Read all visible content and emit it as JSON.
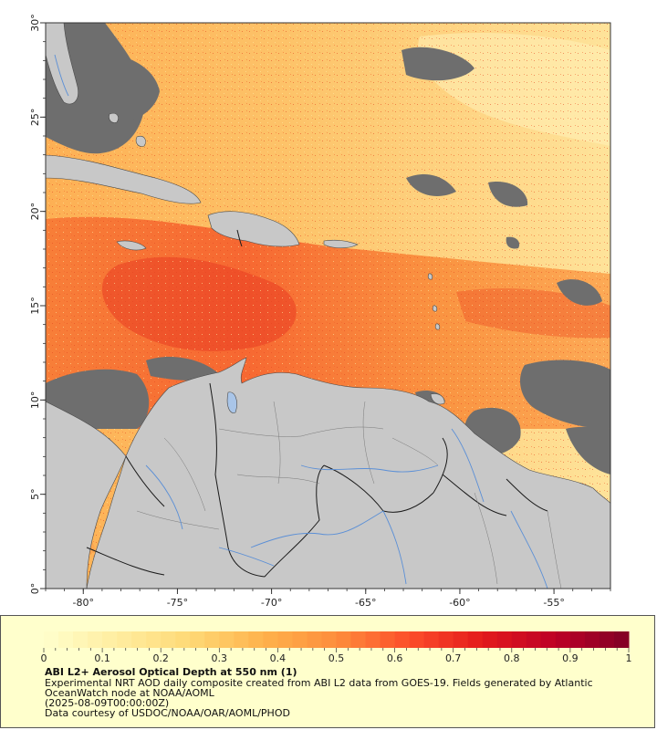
{
  "map": {
    "lon_range": [
      -82,
      -52
    ],
    "lat_range": [
      0,
      30
    ],
    "lon_ticks": [
      {
        "value": -80,
        "label": "-80°"
      },
      {
        "value": -75,
        "label": "-75°"
      },
      {
        "value": -70,
        "label": "-70°"
      },
      {
        "value": -65,
        "label": "-65°"
      },
      {
        "value": -60,
        "label": "-60°"
      },
      {
        "value": -55,
        "label": "-55°"
      }
    ],
    "lat_ticks": [
      {
        "value": 0,
        "label": "0°"
      },
      {
        "value": 5,
        "label": "5°"
      },
      {
        "value": 10,
        "label": "10°"
      },
      {
        "value": 15,
        "label": "15°"
      },
      {
        "value": 20,
        "label": "20°"
      },
      {
        "value": 25,
        "label": "25°"
      },
      {
        "value": 30,
        "label": "30°"
      }
    ],
    "colors": {
      "land": "#c8c8c8",
      "no_data": "#6e6e6e",
      "border": "#1a1a1a",
      "river": "#5b8fd6"
    }
  },
  "colorbar": {
    "min": 0,
    "max": 1,
    "tick_labels": [
      "0",
      "0.1",
      "0.2",
      "0.3",
      "0.4",
      "0.5",
      "0.6",
      "0.7",
      "0.8",
      "0.9",
      "1"
    ],
    "colors": [
      "#ffffcc",
      "#ffeda0",
      "#fed976",
      "#feb24c",
      "#fd8d3c",
      "#fc4e2a",
      "#e31a1c",
      "#bd0026",
      "#800026"
    ]
  },
  "legend": {
    "title": "ABI L2+ Aerosol Optical Depth at 550 nm (1)",
    "description_line1": "Experimental NRT AOD daily composite created from ABI L2 data from GOES-19. Fields generated by Atlantic",
    "description_line2": "OceanWatch node at NOAA/AOML",
    "date": "(2025-08-09T00:00:00Z)",
    "credit": "Data courtesy of USDOC/NOAA/OAR/AOML/PHOD"
  }
}
